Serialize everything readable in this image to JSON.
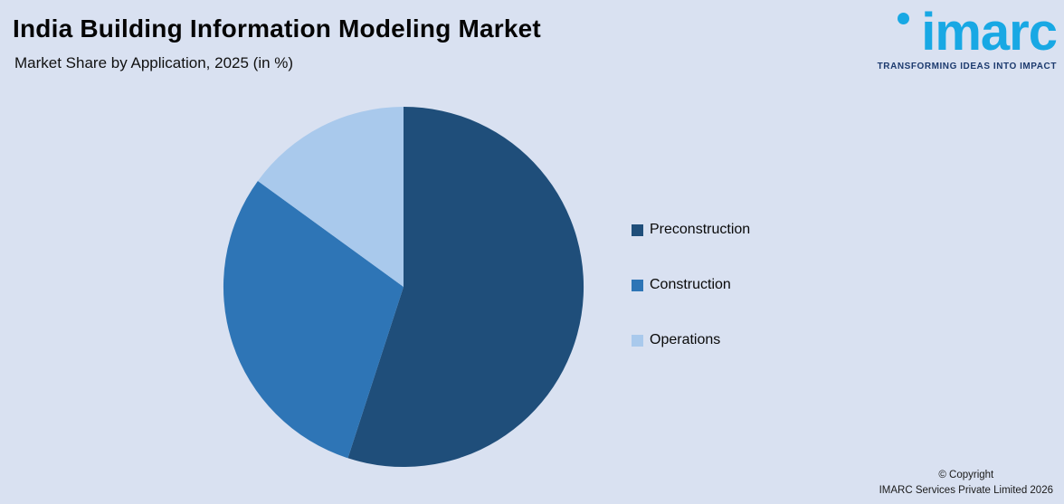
{
  "header": {
    "title": "India Building Information Modeling Market",
    "subtitle": "Market Share by Application, 2025 (in %)"
  },
  "logo": {
    "name": "imarc",
    "tagline": "TRANSFORMING IDEAS INTO IMPACT",
    "brand_cyan": "#18a8e4",
    "brand_navy": "#1c3a6e"
  },
  "chart_data": {
    "type": "pie",
    "title": "India Building Information Modeling Market",
    "subtitle": "Market Share by Application, 2025 (in %)",
    "categories": [
      "Preconstruction",
      "Construction",
      "Operations"
    ],
    "values": [
      55,
      30,
      15
    ],
    "colors": [
      "#1f4e7a",
      "#2e75b6",
      "#a9c9ec"
    ],
    "units": "%",
    "start_angle_deg": 0,
    "direction": "clockwise",
    "legend_position": "right",
    "labels_shown_on_chart": false
  },
  "footer": {
    "line1": "© Copyright",
    "line2": "IMARC Services Private Limited 2026"
  },
  "colors": {
    "background": "#d9e1f1"
  }
}
